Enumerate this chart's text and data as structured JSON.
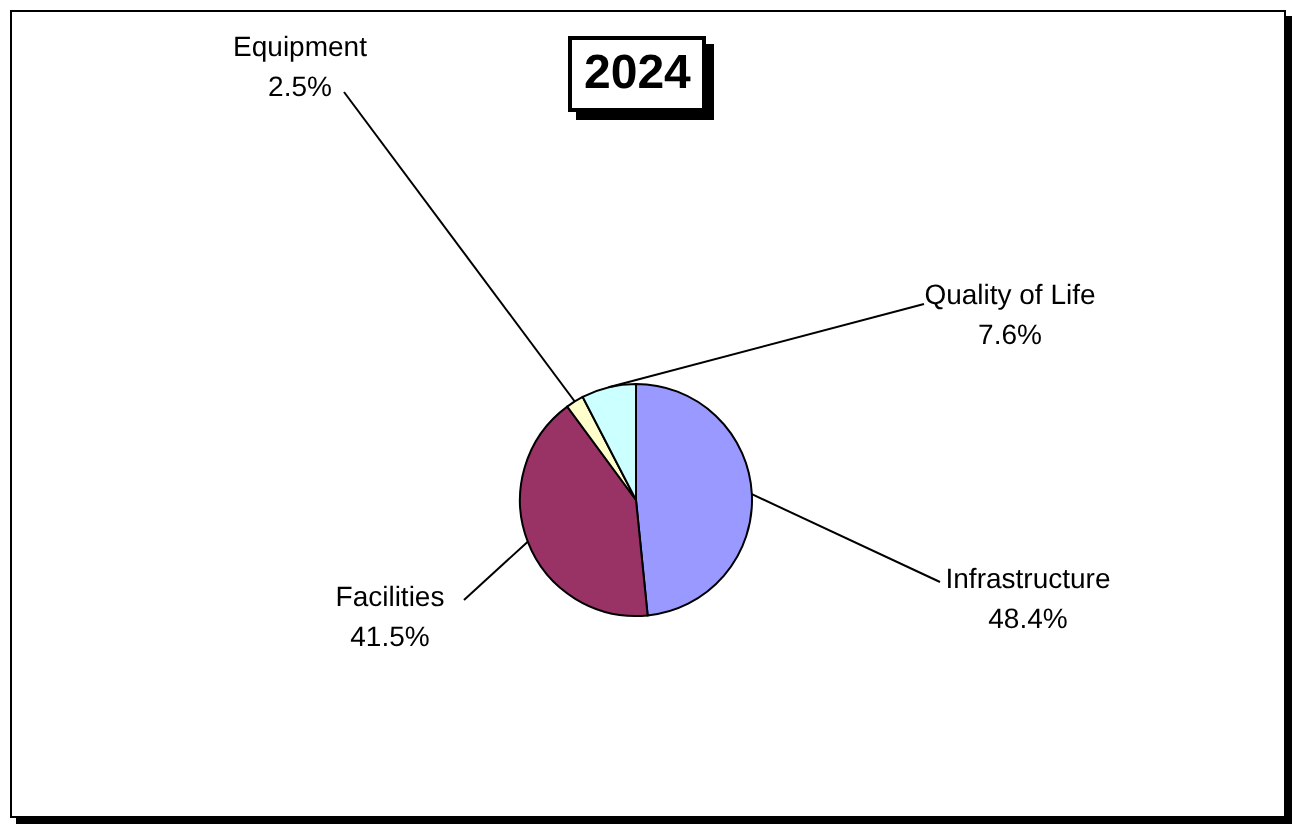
{
  "chart_data": {
    "type": "pie",
    "title": "2024",
    "categories": [
      "Infrastructure",
      "Facilities",
      "Equipment",
      "Quality of Life"
    ],
    "values": [
      48.4,
      41.5,
      2.5,
      7.6
    ],
    "value_labels": [
      "48.4%",
      "41.5%",
      "2.5%",
      "7.6%"
    ],
    "colors": [
      "#9999ff",
      "#993366",
      "#ffffcc",
      "#ccffff"
    ],
    "legend": false
  }
}
